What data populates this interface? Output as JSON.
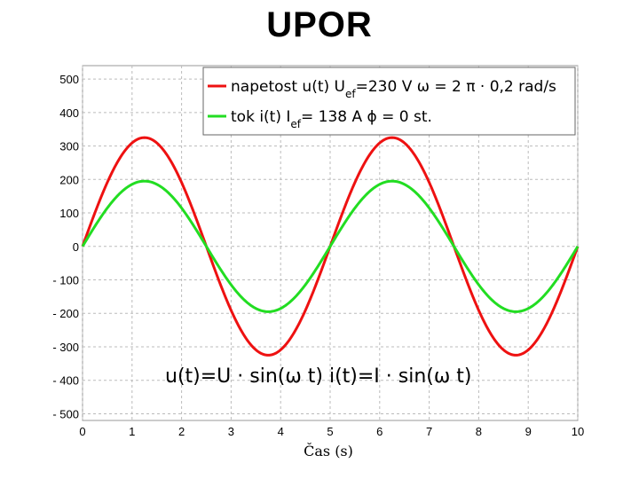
{
  "title": "UPOR",
  "chart_data": {
    "type": "line",
    "xlabel": "Čas (s)",
    "ylabel": "",
    "xlim": [
      0,
      10
    ],
    "ylim": [
      -520,
      540
    ],
    "x_ticks": [
      0,
      1,
      2,
      3,
      4,
      5,
      6,
      7,
      8,
      9,
      10
    ],
    "y_ticks": [
      500,
      400,
      300,
      200,
      100,
      0,
      -100,
      -200,
      -300,
      -400,
      -500
    ],
    "y_tick_labels": [
      "500",
      "400",
      "300",
      "200",
      "100",
      "0",
      "- 100",
      "- 200",
      "- 300",
      "- 400",
      "- 500"
    ],
    "grid": true,
    "legend_position": "top-right",
    "omega": 1.2566,
    "series": [
      {
        "legend_prefix": "napetost u(t) U",
        "legend_sub": "ef",
        "legend_suffix": "=230 V  ω = 2  π  ·  0,2 rad/s",
        "amplitude": 325,
        "effective_value": 230,
        "unit": "V",
        "color": "#ee1111"
      },
      {
        "legend_prefix": "tok i(t) I",
        "legend_sub": "ef",
        "legend_suffix": "= 138 A   ϕ = 0 st.",
        "amplitude": 195,
        "effective_value": 138,
        "unit": "A",
        "color": "#22dd22"
      }
    ],
    "annotation": "u(t)=U · sin(ω t)  i(t)=I · sin(ω t)"
  }
}
